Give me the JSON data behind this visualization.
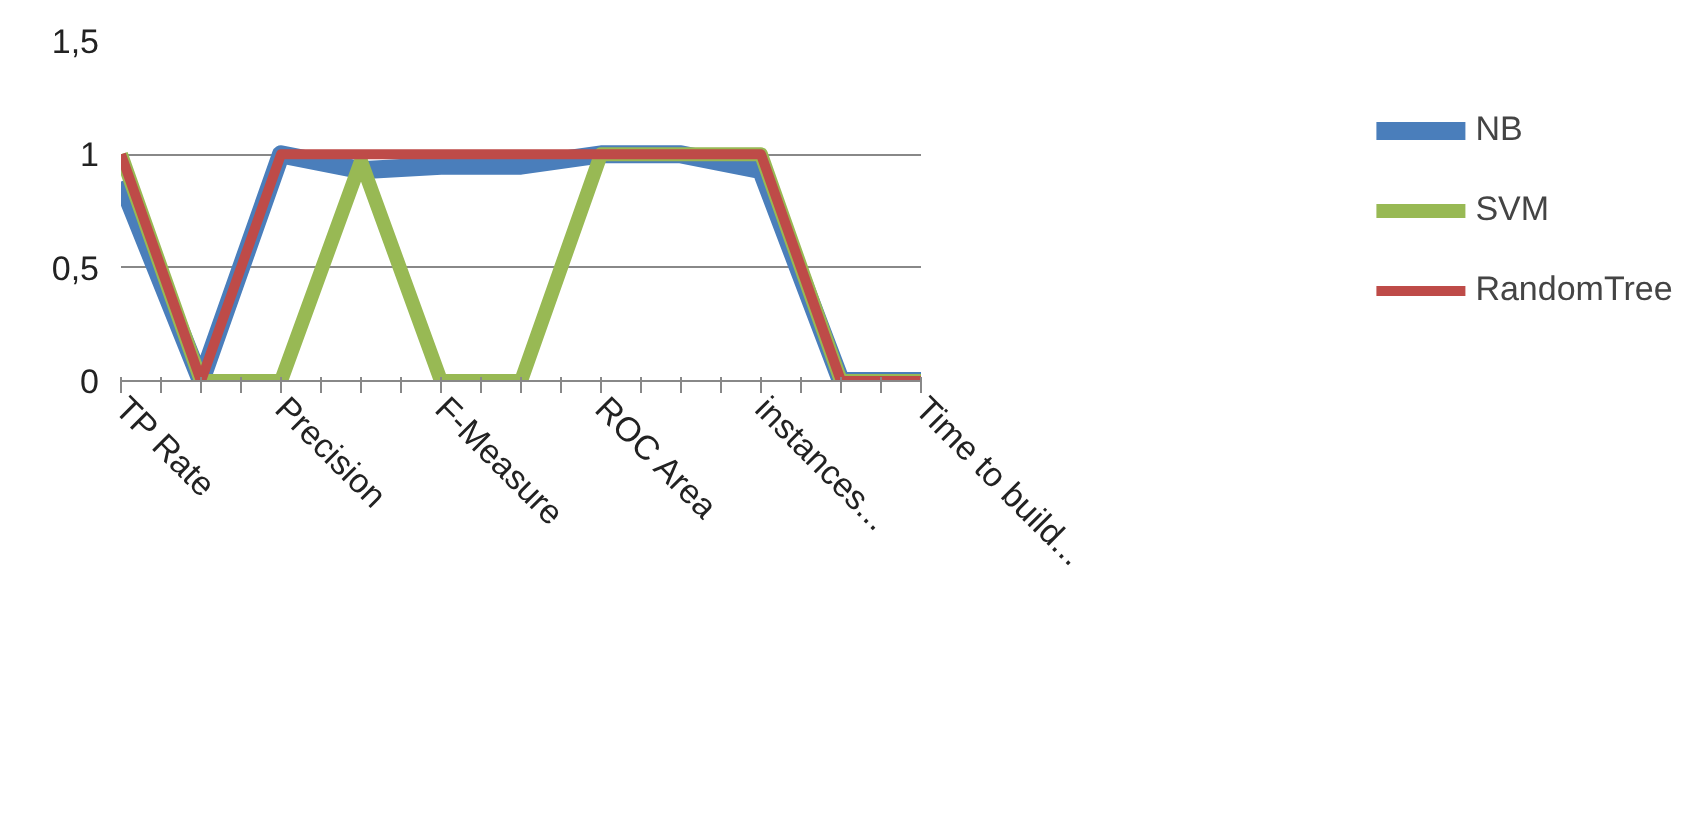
{
  "chart_data": {
    "type": "line",
    "categories": [
      "TP Rate",
      null,
      "Precision",
      null,
      "F-Measure",
      null,
      "ROC Area",
      null,
      "instances...",
      null,
      "Time to build..."
    ],
    "series": [
      {
        "name": "NB",
        "color": "#4a7ebb",
        "values": [
          0.88,
          0,
          1,
          0.93,
          0.95,
          0.95,
          1,
          1,
          0.93,
          0,
          0
        ]
      },
      {
        "name": "SVM",
        "color": "#98b954",
        "values": [
          1,
          0,
          0,
          0.97,
          0,
          0,
          1,
          1,
          1,
          0,
          0
        ]
      },
      {
        "name": "RandomTree",
        "color": "#be4b48",
        "values": [
          1,
          0,
          1,
          1,
          1,
          1,
          1,
          1,
          1,
          0,
          0
        ]
      }
    ],
    "ylim": [
      0,
      1.5
    ],
    "yticks": [
      0,
      {
        "value": 0.5,
        "label": "0,5"
      },
      1,
      {
        "value": 1.5,
        "label": "1,5"
      }
    ],
    "grid": "y",
    "legend": "right",
    "marker": "none",
    "line_style": "solid"
  }
}
